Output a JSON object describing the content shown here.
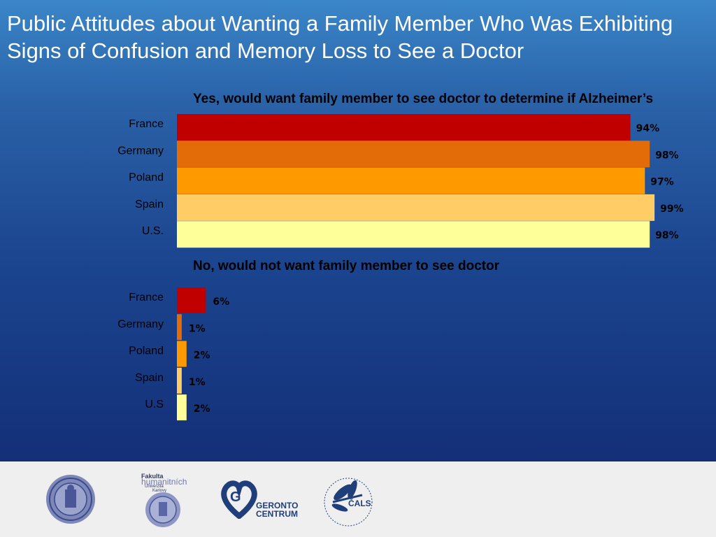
{
  "title": "Public Attitudes about Wanting a Family Member Who Was Exhibiting Signs of Confusion and Memory Loss to See a Doctor",
  "colors": {
    "France": "#c00000",
    "Germany": "#e36c09",
    "Poland": "#ff9900",
    "Spain": "#ffcc66",
    "US": "#ffff99"
  },
  "chart_data": [
    {
      "type": "bar",
      "orientation": "horizontal",
      "title": "Yes, would want family member to see doctor to determine if Alzheimer’s",
      "categories": [
        "France",
        "Germany",
        "Poland",
        "Spain",
        "U.S."
      ],
      "values": [
        94,
        98,
        97,
        99,
        98
      ],
      "value_labels": [
        "94%",
        "98%",
        "97%",
        "99%",
        "98%"
      ],
      "xlim": [
        0,
        100
      ],
      "grid": false
    },
    {
      "type": "bar",
      "orientation": "horizontal",
      "title": "No, would not want family member to see doctor",
      "categories": [
        "France",
        "Germany",
        "Poland",
        "Spain",
        "U.S"
      ],
      "values": [
        6,
        1,
        2,
        1,
        2
      ],
      "value_labels": [
        "6%",
        "1%",
        "2%",
        "1%",
        "2%"
      ],
      "xlim": [
        0,
        100
      ],
      "grid": false
    }
  ],
  "footer": {
    "logos": [
      "charles-university-seal-icon",
      "faculty-humanities-logo-icon",
      "gerontocentrum-logo-icon",
      "cals-logo-icon"
    ],
    "faculty_text_1": "Fakulta",
    "faculty_text_2": "humanitních",
    "faculty_text_3": "Univerzita",
    "faculty_text_4": "Karlovy",
    "geronto_text_1": "GERONTO",
    "geronto_text_2": "CENTRUM",
    "cals_text": "ČALS"
  }
}
